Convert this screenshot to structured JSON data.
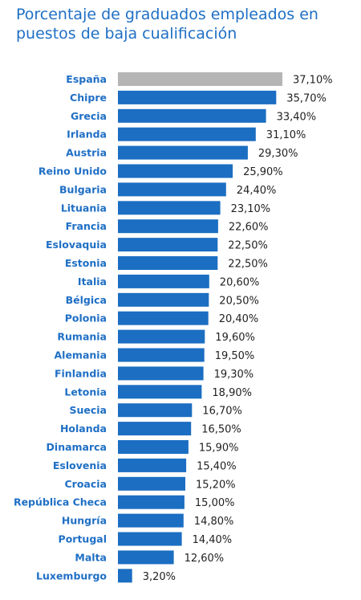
{
  "chart_data": {
    "type": "bar",
    "orientation": "horizontal",
    "title": "Porcentaje de graduados empleados en puestos de baja cualificación",
    "xlabel": "",
    "ylabel": "",
    "xlim": [
      0,
      37.1
    ],
    "grid": false,
    "legend": "none",
    "colors": {
      "bar": "#1b6ec2",
      "highlight": "#b5b5b5",
      "label": "#1f6fc5",
      "value": "#222222"
    },
    "highlight_category": "España",
    "categories": [
      "España",
      "Chipre",
      "Grecia",
      "Irlanda",
      "Austria",
      "Reino Unido",
      "Bulgaria",
      "Lituania",
      "Francia",
      "Eslovaquia",
      "Estonia",
      "Italia",
      "Bélgica",
      "Polonia",
      "Rumania",
      "Alemania",
      "Finlandia",
      "Letonia",
      "Suecia",
      "Holanda",
      "Dinamarca",
      "Eslovenia",
      "Croacia",
      "República Checa",
      "Hungría",
      "Portugal",
      "Malta",
      "Luxemburgo"
    ],
    "values": [
      37.1,
      35.7,
      33.4,
      31.1,
      29.3,
      25.9,
      24.4,
      23.1,
      22.6,
      22.5,
      22.5,
      20.6,
      20.5,
      20.4,
      19.6,
      19.5,
      19.3,
      18.9,
      16.7,
      16.5,
      15.9,
      15.4,
      15.2,
      15.0,
      14.8,
      14.4,
      12.6,
      3.2
    ],
    "value_labels": [
      "37,10%",
      "35,70%",
      "33,40%",
      "31,10%",
      "29,30%",
      "25,90%",
      "24,40%",
      "23,10%",
      "22,60%",
      "22,50%",
      "22,50%",
      "20,60%",
      "20,50%",
      "20,40%",
      "19,60%",
      "19,50%",
      "19,30%",
      "18,90%",
      "16,70%",
      "16,50%",
      "15,90%",
      "15,40%",
      "15,20%",
      "15,00%",
      "14,80%",
      "14,40%",
      "12,60%",
      "3,20%"
    ]
  }
}
